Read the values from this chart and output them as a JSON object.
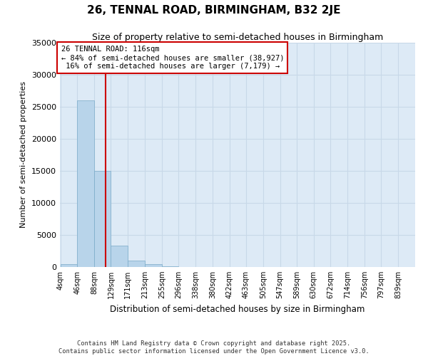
{
  "title": "26, TENNAL ROAD, BIRMINGHAM, B32 2JE",
  "subtitle": "Size of property relative to semi-detached houses in Birmingham",
  "xlabel": "Distribution of semi-detached houses by size in Birmingham",
  "ylabel": "Number of semi-detached properties",
  "bin_labels": [
    "4sqm",
    "46sqm",
    "88sqm",
    "129sqm",
    "171sqm",
    "213sqm",
    "255sqm",
    "296sqm",
    "338sqm",
    "380sqm",
    "422sqm",
    "463sqm",
    "505sqm",
    "547sqm",
    "589sqm",
    "630sqm",
    "672sqm",
    "714sqm",
    "756sqm",
    "797sqm",
    "839sqm"
  ],
  "bin_edges": [
    4,
    46,
    88,
    129,
    171,
    213,
    255,
    296,
    338,
    380,
    422,
    463,
    505,
    547,
    589,
    630,
    672,
    714,
    756,
    797,
    839
  ],
  "bar_heights": [
    400,
    26000,
    15000,
    3300,
    1000,
    500,
    150,
    50,
    20,
    10,
    5,
    3,
    2,
    1,
    1,
    1,
    0,
    0,
    0,
    0
  ],
  "bar_color": "#b8d4ea",
  "bar_edge_color": "#7aaac8",
  "vline_color": "#cc0000",
  "vline_x": 116,
  "ylim": [
    0,
    35000
  ],
  "yticks": [
    0,
    5000,
    10000,
    15000,
    20000,
    25000,
    30000,
    35000
  ],
  "grid_color": "#c8d8e8",
  "plot_bg_color": "#ddeaf6",
  "annotation_text": "26 TENNAL ROAD: 116sqm\n← 84% of semi-detached houses are smaller (38,927)\n 16% of semi-detached houses are larger (7,179) →",
  "footer_line1": "Contains HM Land Registry data © Crown copyright and database right 2025.",
  "footer_line2": "Contains public sector information licensed under the Open Government Licence v3.0."
}
